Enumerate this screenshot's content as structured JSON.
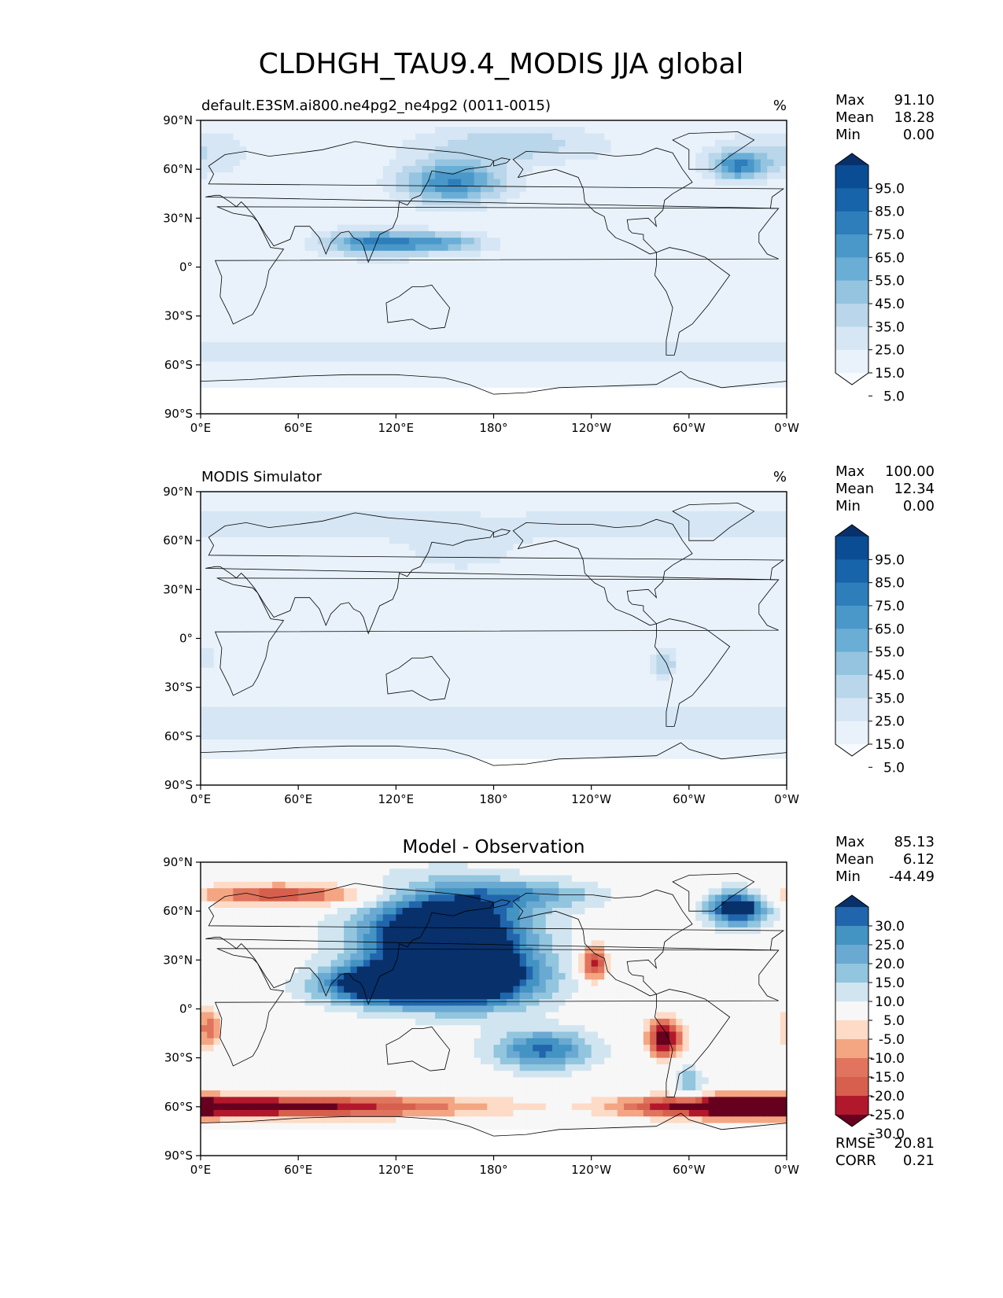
{
  "figure": {
    "title": "CLDHGH_TAU9.4_MODIS JJA global"
  },
  "axes": {
    "lon_ticks": [
      "0°E",
      "60°E",
      "120°E",
      "180°",
      "120°W",
      "60°W",
      "0°W"
    ],
    "lat_ticks": [
      "90°N",
      "60°N",
      "30°N",
      "0°",
      "30°S",
      "60°S",
      "90°S"
    ]
  },
  "chart_data": [
    {
      "type": "heatmap",
      "title_left": "default.E3SM.ai800.ne4pg2_ne4pg2 (0011-0015)",
      "units": "%",
      "stats": [
        {
          "label": "Max",
          "value": "91.10"
        },
        {
          "label": "Mean",
          "value": "18.28"
        },
        {
          "label": "Min",
          "value": "0.00"
        }
      ],
      "colorbar": {
        "labels": [
          "95.0",
          "85.0",
          "75.0",
          "65.0",
          "55.0",
          "45.0",
          "35.0",
          "25.0",
          "15.0",
          "5.0"
        ],
        "colors": [
          "#08306b",
          "#0b4d94",
          "#1864aa",
          "#2e7ebc",
          "#4a98c9",
          "#6aaed6",
          "#94c4df",
          "#b9d6ea",
          "#d6e6f4",
          "#e9f2fa",
          "#f7fbff"
        ]
      },
      "x_range": [
        0,
        360
      ],
      "y_range": [
        -90,
        90
      ]
    },
    {
      "type": "heatmap",
      "title_left": "MODIS Simulator",
      "units": "%",
      "stats": [
        {
          "label": "Max",
          "value": "100.00"
        },
        {
          "label": "Mean",
          "value": "12.34"
        },
        {
          "label": "Min",
          "value": "0.00"
        }
      ],
      "colorbar": {
        "labels": [
          "95.0",
          "85.0",
          "75.0",
          "65.0",
          "55.0",
          "45.0",
          "35.0",
          "25.0",
          "15.0",
          "5.0"
        ],
        "colors": [
          "#08306b",
          "#0b4d94",
          "#1864aa",
          "#2e7ebc",
          "#4a98c9",
          "#6aaed6",
          "#94c4df",
          "#b9d6ea",
          "#d6e6f4",
          "#e9f2fa",
          "#f7fbff"
        ]
      },
      "x_range": [
        0,
        360
      ],
      "y_range": [
        -90,
        90
      ]
    },
    {
      "type": "heatmap",
      "title_center": "Model - Observation",
      "stats": [
        {
          "label": "Max",
          "value": "85.13"
        },
        {
          "label": "Mean",
          "value": "6.12"
        },
        {
          "label": "Min",
          "value": "-44.49"
        }
      ],
      "extra_stats": [
        {
          "label": "RMSE",
          "value": "20.81"
        },
        {
          "label": "CORR",
          "value": "0.21"
        }
      ],
      "colorbar": {
        "labels": [
          "30.0",
          "25.0",
          "20.0",
          "15.0",
          "10.0",
          "5.0",
          "-5.0",
          "-10.0",
          "-15.0",
          "-20.0",
          "-25.0",
          "-30.0"
        ],
        "colors": [
          "#08306b",
          "#2166ac",
          "#4393c3",
          "#6aa9d2",
          "#92c5de",
          "#d1e5f0",
          "#f7f7f7",
          "#fddbc7",
          "#f4a582",
          "#e0745e",
          "#d6604d",
          "#b2182b",
          "#67001f"
        ]
      },
      "x_range": [
        0,
        360
      ],
      "y_range": [
        -90,
        90
      ]
    }
  ]
}
